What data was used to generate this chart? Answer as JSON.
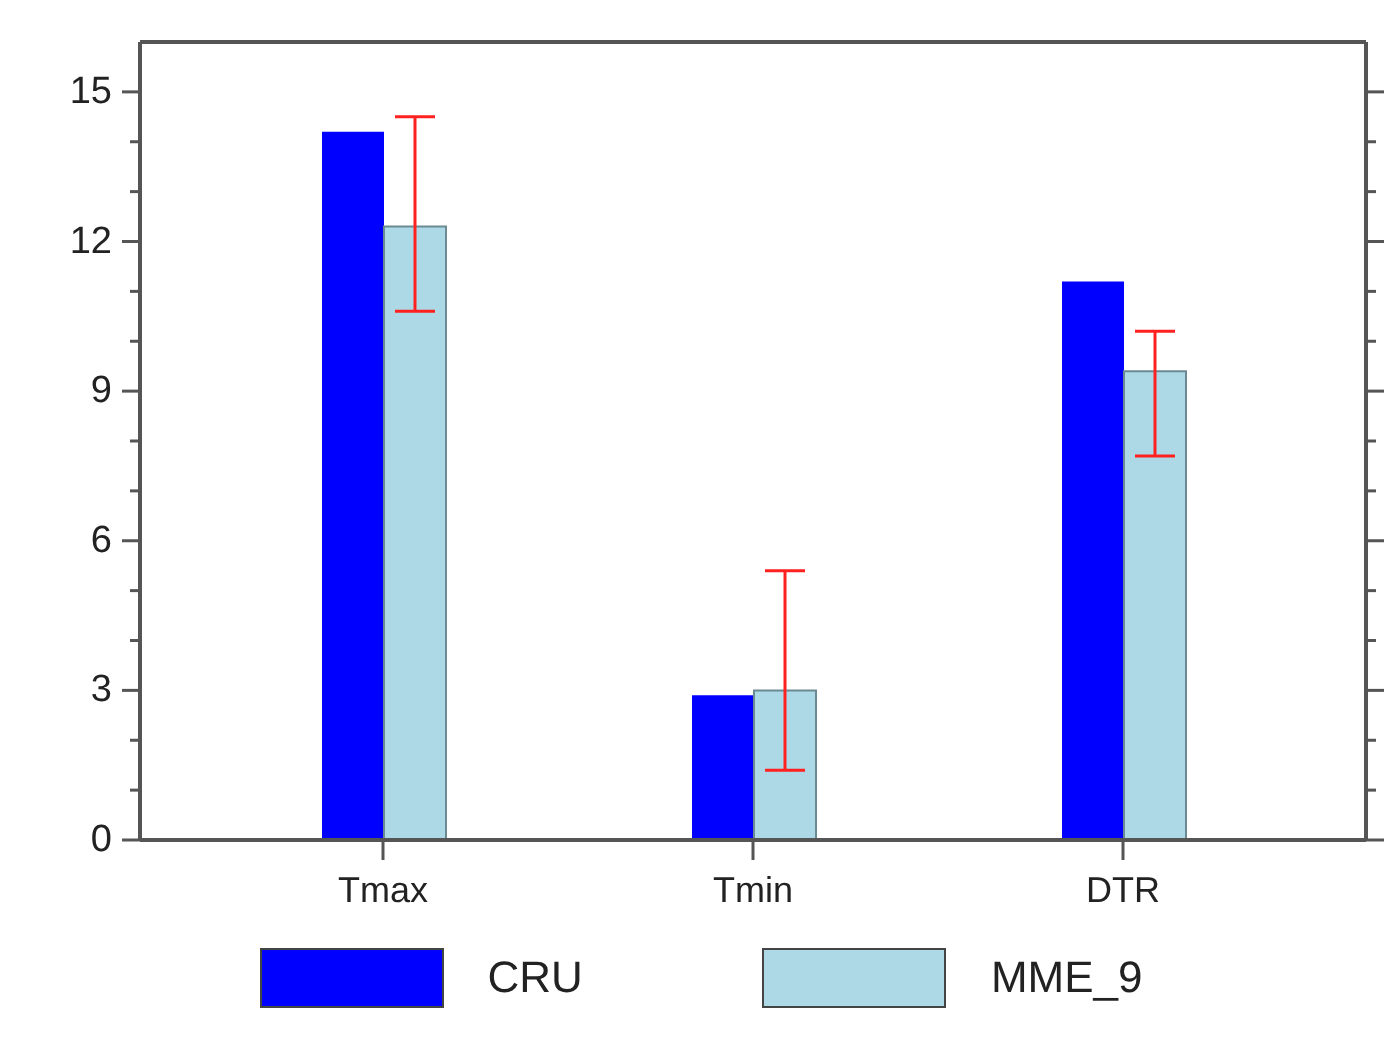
{
  "chart_data": {
    "type": "bar",
    "categories": [
      "Tmax",
      "Tmin",
      "DTR"
    ],
    "series": [
      {
        "name": "CRU",
        "color": "#0000ff",
        "values": [
          14.2,
          2.9,
          11.2
        ]
      },
      {
        "name": "MME_9",
        "color": "#add8e6",
        "values": [
          12.3,
          3.0,
          9.4
        ],
        "errors": [
          [
            10.6,
            14.5
          ],
          [
            1.4,
            5.4
          ],
          [
            7.7,
            10.2
          ]
        ]
      }
    ],
    "ylim": [
      0,
      16
    ],
    "yticks": [
      0,
      {
        "value": 1,
        "label": null
      },
      {
        "value": 2,
        "label": null
      },
      3,
      {
        "value": 4,
        "label": null
      },
      {
        "value": 5,
        "label": null
      },
      6,
      {
        "value": 7,
        "label": null
      },
      {
        "value": 8,
        "label": null
      },
      9,
      {
        "value": 10,
        "label": null
      },
      {
        "value": 11,
        "label": null
      },
      12,
      {
        "value": 13,
        "label": null
      },
      {
        "value": 14,
        "label": null
      },
      15
    ],
    "grid": false,
    "legend": "bottom"
  }
}
